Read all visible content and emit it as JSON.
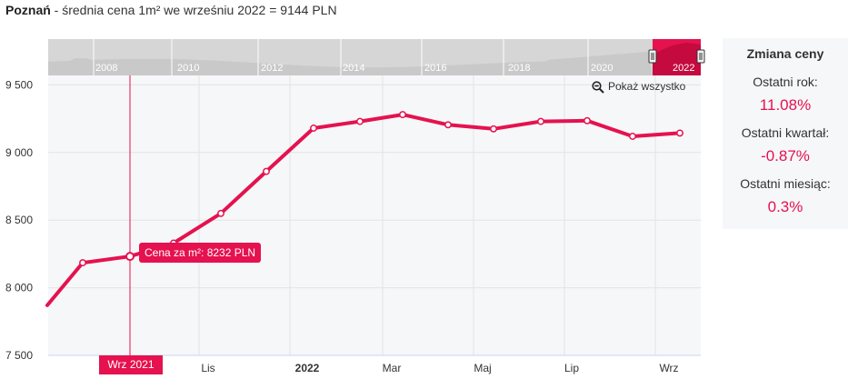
{
  "header": {
    "city": "Poznań",
    "subtitle": " - średnia cena 1m² we wrześniu 2022 = 9144 PLN"
  },
  "zoom_label": "Pokaż wszystko",
  "tooltip": "Cena za m²: 8232 PLN",
  "crosshair_label": "Wrz 2021",
  "side_panel": {
    "title": "Zmiana ceny",
    "items": [
      {
        "label": "Ostatni rok:",
        "value": "11.08%"
      },
      {
        "label": "Ostatni kwartał:",
        "value": "-0.87%"
      },
      {
        "label": "Ostatni miesiąc:",
        "value": "0.3%"
      }
    ]
  },
  "navigator": {
    "years": [
      "2008",
      "2010",
      "2012",
      "2014",
      "2016",
      "2018",
      "2020",
      "2022"
    ]
  },
  "colors": {
    "accent": "#e5124f",
    "grid": "#e3e3e3",
    "navigator_fill": "#c9c9c9",
    "navigator_bg": "#d6d6d6"
  },
  "chart_data": {
    "type": "line",
    "series": [
      {
        "x": [
          "Lip 2021",
          "Sie 2021",
          "Wrz 2021",
          "Paź 2021",
          "Lis 2021",
          "Gru 2021",
          "Sty 2022",
          "Lut 2022",
          "Mar 2022",
          "Kwi 2022",
          "Maj 2022",
          "Cze 2022",
          "Lip 2022",
          "Sie 2022",
          "Wrz 2022"
        ],
        "values": [
          7870,
          8185,
          8232,
          8330,
          8550,
          8860,
          9180,
          9230,
          9280,
          9205,
          9175,
          9230,
          9235,
          9120,
          9144
        ]
      }
    ],
    "yticks": [
      "7 500",
      "8 000",
      "8 500",
      "9 000",
      "9 500"
    ],
    "ylim": [
      7500,
      9570
    ],
    "xticks": [
      "Lis",
      "2022",
      "Mar",
      "Maj",
      "Lip",
      "Wrz"
    ],
    "highlighted_point": {
      "x": "Wrz 2021",
      "value": 8232
    },
    "grid": true,
    "legend": "none"
  }
}
